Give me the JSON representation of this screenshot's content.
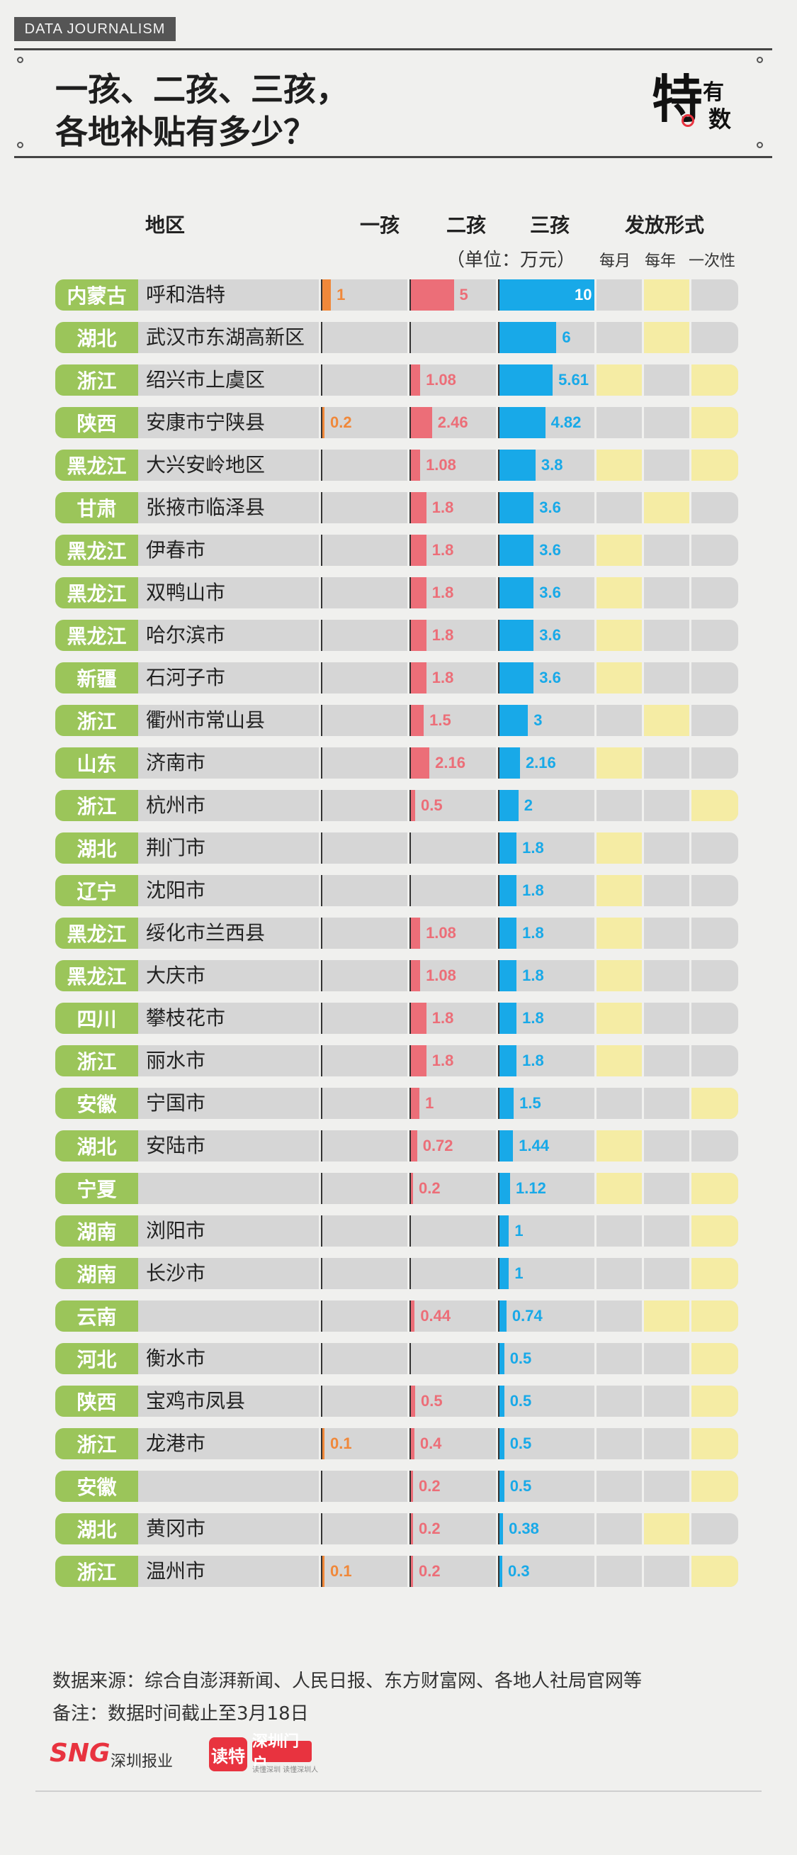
{
  "header": {
    "tag": "DATA JOURNALISM",
    "title_line1": "一孩、二孩、三孩，",
    "title_line2": "各地补贴有多少？",
    "logo_big": "特",
    "logo_small1": "有",
    "logo_small2": "数"
  },
  "columns": {
    "region": "地区",
    "child1": "一孩",
    "child2": "二孩",
    "child3": "三孩",
    "payment": "发放形式",
    "unit": "（单位：万元）",
    "monthly": "每月",
    "yearly": "每年",
    "once": "一次性"
  },
  "colors": {
    "province_bg": "#9bc55a",
    "row_bg": "#d6d6d6",
    "child1": "#f0883a",
    "child2": "#ec6e78",
    "child3": "#18a9e8",
    "payment_mark": "#f5eca4"
  },
  "chart_data": {
    "type": "bar",
    "scale_max": 10,
    "rows": [
      {
        "province": "内蒙古",
        "city": "呼和浩特",
        "child1": "1",
        "child2": "5",
        "child3": "10",
        "monthly": false,
        "yearly": true,
        "once": false
      },
      {
        "province": "湖北",
        "city": "武汉市东湖高新区",
        "child1": "",
        "child2": "",
        "child3": "6",
        "monthly": false,
        "yearly": true,
        "once": false
      },
      {
        "province": "浙江",
        "city": "绍兴市上虞区",
        "child1": "",
        "child2": "1.08",
        "child3": "5.61",
        "monthly": true,
        "yearly": false,
        "once": true
      },
      {
        "province": "陕西",
        "city": "安康市宁陕县",
        "child1": "0.2",
        "child2": "2.46",
        "child3": "4.82",
        "monthly": false,
        "yearly": false,
        "once": true
      },
      {
        "province": "黑龙江",
        "city": "大兴安岭地区",
        "child1": "",
        "child2": "1.08",
        "child3": "3.8",
        "monthly": true,
        "yearly": false,
        "once": true
      },
      {
        "province": "甘肃",
        "city": "张掖市临泽县",
        "child1": "",
        "child2": "1.8",
        "child3": "3.6",
        "monthly": false,
        "yearly": true,
        "once": false
      },
      {
        "province": "黑龙江",
        "city": "伊春市",
        "child1": "",
        "child2": "1.8",
        "child3": "3.6",
        "monthly": true,
        "yearly": false,
        "once": false
      },
      {
        "province": "黑龙江",
        "city": "双鸭山市",
        "child1": "",
        "child2": "1.8",
        "child3": "3.6",
        "monthly": true,
        "yearly": false,
        "once": false
      },
      {
        "province": "黑龙江",
        "city": "哈尔滨市",
        "child1": "",
        "child2": "1.8",
        "child3": "3.6",
        "monthly": true,
        "yearly": false,
        "once": false
      },
      {
        "province": "新疆",
        "city": "石河子市",
        "child1": "",
        "child2": "1.8",
        "child3": "3.6",
        "monthly": true,
        "yearly": false,
        "once": false
      },
      {
        "province": "浙江",
        "city": "衢州市常山县",
        "child1": "",
        "child2": "1.5",
        "child3": "3",
        "monthly": false,
        "yearly": true,
        "once": false
      },
      {
        "province": "山东",
        "city": "济南市",
        "child1": "",
        "child2": "2.16",
        "child3": "2.16",
        "monthly": true,
        "yearly": false,
        "once": false
      },
      {
        "province": "浙江",
        "city": "杭州市",
        "child1": "",
        "child2": "0.5",
        "child3": "2",
        "monthly": false,
        "yearly": false,
        "once": true
      },
      {
        "province": "湖北",
        "city": "荆门市",
        "child1": "",
        "child2": "",
        "child3": "1.8",
        "monthly": true,
        "yearly": false,
        "once": false
      },
      {
        "province": "辽宁",
        "city": "沈阳市",
        "child1": "",
        "child2": "",
        "child3": "1.8",
        "monthly": true,
        "yearly": false,
        "once": false
      },
      {
        "province": "黑龙江",
        "city": "绥化市兰西县",
        "child1": "",
        "child2": "1.08",
        "child3": "1.8",
        "monthly": true,
        "yearly": false,
        "once": false
      },
      {
        "province": "黑龙江",
        "city": "大庆市",
        "child1": "",
        "child2": "1.08",
        "child3": "1.8",
        "monthly": true,
        "yearly": false,
        "once": false
      },
      {
        "province": "四川",
        "city": "攀枝花市",
        "child1": "",
        "child2": "1.8",
        "child3": "1.8",
        "monthly": true,
        "yearly": false,
        "once": false
      },
      {
        "province": "浙江",
        "city": "丽水市",
        "child1": "",
        "child2": "1.8",
        "child3": "1.8",
        "monthly": true,
        "yearly": false,
        "once": false
      },
      {
        "province": "安徽",
        "city": "宁国市",
        "child1": "",
        "child2": "1",
        "child3": "1.5",
        "monthly": false,
        "yearly": false,
        "once": true
      },
      {
        "province": "湖北",
        "city": "安陆市",
        "child1": "",
        "child2": "0.72",
        "child3": "1.44",
        "monthly": true,
        "yearly": false,
        "once": false
      },
      {
        "province": "宁夏",
        "city": "",
        "child1": "",
        "child2": "0.2",
        "child3": "1.12",
        "monthly": true,
        "yearly": false,
        "once": true
      },
      {
        "province": "湖南",
        "city": "浏阳市",
        "child1": "",
        "child2": "",
        "child3": "1",
        "monthly": false,
        "yearly": false,
        "once": true
      },
      {
        "province": "湖南",
        "city": "长沙市",
        "child1": "",
        "child2": "",
        "child3": "1",
        "monthly": false,
        "yearly": false,
        "once": true
      },
      {
        "province": "云南",
        "city": "",
        "child1": "",
        "child2": "0.44",
        "child3": "0.74",
        "monthly": false,
        "yearly": true,
        "once": true
      },
      {
        "province": "河北",
        "city": "衡水市",
        "child1": "",
        "child2": "",
        "child3": "0.5",
        "monthly": false,
        "yearly": false,
        "once": true
      },
      {
        "province": "陕西",
        "city": "宝鸡市凤县",
        "child1": "",
        "child2": "0.5",
        "child3": "0.5",
        "monthly": false,
        "yearly": false,
        "once": true
      },
      {
        "province": "浙江",
        "city": "龙港市",
        "child1": "0.1",
        "child2": "0.4",
        "child3": "0.5",
        "monthly": false,
        "yearly": false,
        "once": true
      },
      {
        "province": "安徽",
        "city": "",
        "child1": "",
        "child2": "0.2",
        "child3": "0.5",
        "monthly": false,
        "yearly": false,
        "once": true
      },
      {
        "province": "湖北",
        "city": "黄冈市",
        "child1": "",
        "child2": "0.2",
        "child3": "0.38",
        "monthly": false,
        "yearly": true,
        "once": false
      },
      {
        "province": "浙江",
        "city": "温州市",
        "child1": "0.1",
        "child2": "0.2",
        "child3": "0.3",
        "monthly": false,
        "yearly": false,
        "once": true
      }
    ]
  },
  "footer": {
    "source": "数据来源：综合自澎湃新闻、人民日报、东方财富网、各地人社局官网等",
    "note": "备注：数据时间截止至3月18日",
    "logo_sng": "SNG",
    "logo_sng_text": "深圳报业",
    "logo_dute": "读特",
    "logo_szmh": "深圳门户",
    "logo_szmh_sub": "读懂深圳 读懂深圳人"
  }
}
